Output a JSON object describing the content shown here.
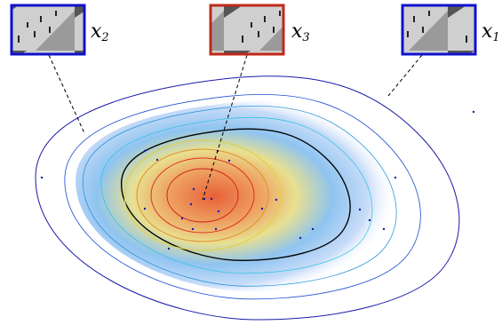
{
  "labels": [
    {
      "var": "x",
      "sub": "2"
    },
    {
      "var": "x",
      "sub": "3"
    },
    {
      "var": "x",
      "sub": "1"
    }
  ]
}
